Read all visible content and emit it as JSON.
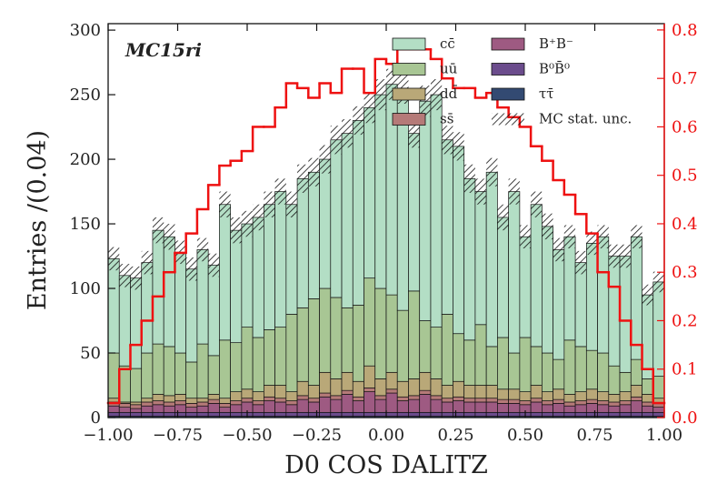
{
  "chart_data": {
    "type": "stacked-histogram",
    "annotation": "MC15ri",
    "xlabel": "D0 COS DALITZ",
    "ylabel": "Entries /(0.04)",
    "bins": [
      -1.0,
      -0.96,
      -0.92,
      -0.88,
      -0.84,
      -0.8,
      -0.76,
      -0.72,
      -0.68,
      -0.64,
      -0.6,
      -0.56,
      -0.52,
      -0.48,
      -0.44,
      -0.4,
      -0.36,
      -0.32,
      -0.28,
      -0.24,
      -0.2,
      -0.16,
      -0.12,
      -0.08,
      -0.04,
      0.0,
      0.04,
      0.08,
      0.12,
      0.16,
      0.2,
      0.24,
      0.28,
      0.32,
      0.36,
      0.4,
      0.44,
      0.48,
      0.52,
      0.56,
      0.6,
      0.64,
      0.68,
      0.72,
      0.76,
      0.8,
      0.84,
      0.88,
      0.92,
      0.96,
      1.0
    ],
    "xlim": [
      -1.0,
      1.0
    ],
    "xticks": [
      {
        "value": -1.0,
        "label": "−1.00"
      },
      {
        "value": -0.75,
        "label": "−0.75"
      },
      {
        "value": -0.5,
        "label": "−0.50"
      },
      {
        "value": -0.25,
        "label": "−0.25"
      },
      {
        "value": 0,
        "label": "0.00"
      },
      0.25,
      {
        "value": 0.5,
        "label": "0.50"
      },
      0.75,
      {
        "value": 1.0,
        "label": "1.00"
      }
    ],
    "ylim": [
      0,
      305
    ],
    "yticks": [
      0,
      50,
      100,
      150,
      200,
      250,
      300
    ],
    "y2lim": [
      0,
      0.813
    ],
    "y2ticks": [
      {
        "value": 0,
        "label": "0.0"
      },
      0.1,
      0.2,
      0.3,
      0.4,
      0.5,
      0.6,
      0.7,
      0.8
    ],
    "series": [
      {
        "name": "ττ̄",
        "color": "#334a72",
        "values": [
          1,
          1,
          1,
          1,
          1,
          1,
          1,
          1,
          1,
          1,
          1,
          1,
          1,
          1,
          1,
          1,
          1,
          1,
          1,
          1,
          1,
          1,
          1,
          1,
          1,
          1,
          1,
          1,
          1,
          1,
          1,
          1,
          1,
          1,
          1,
          1,
          1,
          1,
          1,
          1,
          1,
          1,
          1,
          1,
          1,
          1,
          1,
          1,
          1,
          1
        ]
      },
      {
        "name": "B⁰B̄⁰",
        "color": "#6b4c8c",
        "values": [
          3,
          3,
          3,
          3,
          3,
          3,
          3,
          3,
          3,
          3,
          3,
          3,
          3,
          3,
          3,
          3,
          3,
          3,
          3,
          3,
          3,
          3,
          3,
          3,
          3,
          3,
          3,
          3,
          3,
          3,
          3,
          3,
          3,
          3,
          3,
          3,
          3,
          3,
          3,
          3,
          3,
          3,
          3,
          3,
          3,
          3,
          3,
          3,
          3,
          3
        ]
      },
      {
        "name": "B⁺B⁻",
        "color": "#9e5a82",
        "values": [
          5,
          4,
          3,
          5,
          6,
          5,
          6,
          4,
          5,
          7,
          4,
          6,
          8,
          6,
          9,
          8,
          6,
          10,
          8,
          12,
          10,
          14,
          9,
          16,
          10,
          15,
          9,
          10,
          14,
          10,
          8,
          9,
          8,
          8,
          8,
          7,
          7,
          6,
          8,
          6,
          7,
          5,
          6,
          7,
          6,
          5,
          6,
          9,
          5,
          4
        ]
      },
      {
        "name": "ss̄",
        "color": "#b57a78",
        "values": [
          3,
          3,
          3,
          3,
          3,
          3,
          3,
          3,
          3,
          3,
          3,
          3,
          3,
          3,
          3,
          3,
          3,
          3,
          3,
          3,
          3,
          3,
          3,
          3,
          3,
          3,
          3,
          3,
          3,
          3,
          3,
          3,
          3,
          3,
          3,
          3,
          3,
          3,
          3,
          3,
          3,
          3,
          3,
          3,
          3,
          3,
          3,
          3,
          3,
          3
        ]
      },
      {
        "name": "dd̄",
        "color": "#b9a878",
        "values": [
          3,
          1,
          2,
          3,
          5,
          5,
          5,
          4,
          3,
          4,
          4,
          7,
          7,
          7,
          9,
          10,
          7,
          11,
          10,
          16,
          13,
          14,
          12,
          17,
          13,
          13,
          12,
          13,
          14,
          13,
          10,
          12,
          10,
          10,
          10,
          8,
          8,
          7,
          10,
          7,
          8,
          6,
          7,
          8,
          7,
          6,
          7,
          9,
          6,
          4
        ]
      },
      {
        "name": "uū",
        "color": "#a8c694",
        "values": [
          35,
          28,
          26,
          35,
          39,
          38,
          32,
          28,
          42,
          30,
          45,
          38,
          48,
          42,
          43,
          45,
          60,
          57,
          67,
          65,
          63,
          50,
          59,
          68,
          70,
          60,
          55,
          68,
          40,
          40,
          55,
          37,
          35,
          47,
          30,
          40,
          28,
          42,
          30,
          30,
          23,
          42,
          35,
          30,
          30,
          22,
          15,
          20,
          12,
          17
        ]
      },
      {
        "name": "cc̄",
        "color": "#b3dec5",
        "values": [
          73,
          70,
          70,
          70,
          88,
          85,
          78,
          72,
          73,
          70,
          105,
          87,
          80,
          93,
          97,
          105,
          85,
          100,
          98,
          100,
          122,
          135,
          143,
          132,
          150,
          163,
          172,
          122,
          170,
          180,
          135,
          145,
          125,
          103,
          135,
          93,
          125,
          78,
          110,
          98,
          85,
          80,
          65,
          83,
          90,
          85,
          90,
          95,
          65,
          73
        ]
      },
      {
        "name": "",
        "color": "#ee1111",
        "axis": "y2",
        "values": [
          0.03,
          0.1,
          0.15,
          0.2,
          0.25,
          0.3,
          0.34,
          0.38,
          0.43,
          0.48,
          0.52,
          0.53,
          0.55,
          0.6,
          0.6,
          0.64,
          0.69,
          0.68,
          0.66,
          0.69,
          0.67,
          0.72,
          0.72,
          0.67,
          0.74,
          0.73,
          0.76,
          0.76,
          0.76,
          0.74,
          0.7,
          0.68,
          0.68,
          0.66,
          0.67,
          0.64,
          0.62,
          0.6,
          0.56,
          0.53,
          0.49,
          0.46,
          0.42,
          0.38,
          0.3,
          0.27,
          0.2,
          0.15,
          0.1,
          0.03
        ]
      }
    ],
    "uncertainty_name": "MC stat. unc.",
    "errors": [
      9,
      9,
      9,
      9,
      10,
      10,
      9,
      9,
      9,
      9,
      10,
      10,
      10,
      10,
      10,
      10,
      10,
      11,
      11,
      11,
      11,
      11,
      11,
      12,
      12,
      12,
      12,
      11,
      12,
      12,
      11,
      11,
      11,
      10,
      11,
      10,
      10,
      9,
      10,
      10,
      9,
      9,
      9,
      9,
      9,
      9,
      9,
      9,
      8,
      8
    ]
  }
}
